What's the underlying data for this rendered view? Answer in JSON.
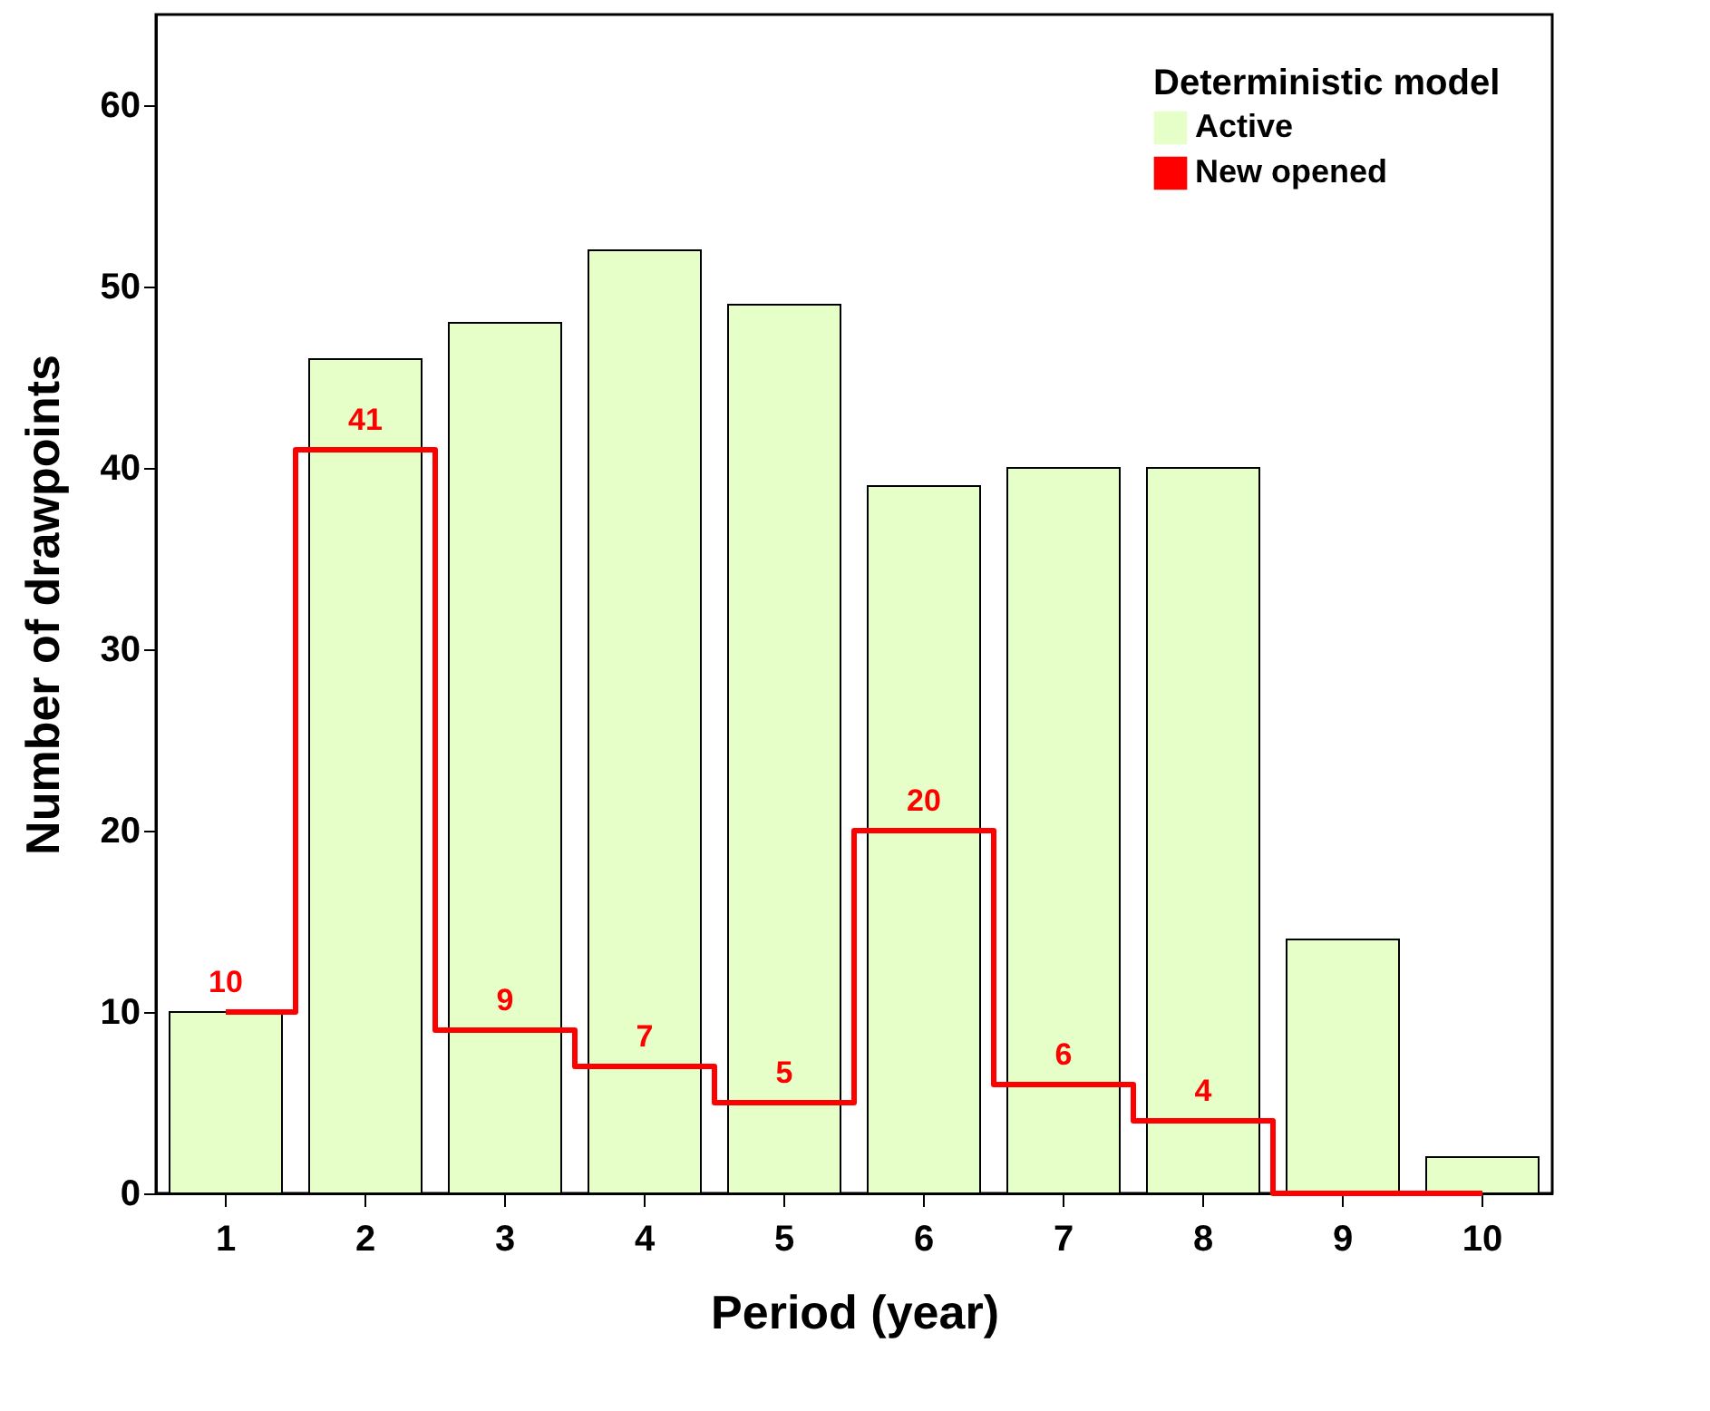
{
  "chart_data": {
    "type": "bar",
    "xlabel": "Period (year)",
    "ylabel": "Number  of drawpoints",
    "legend_title": "Deterministic model",
    "legend": "top right",
    "grid": false,
    "categories": [
      "1",
      "2",
      "3",
      "4",
      "5",
      "6",
      "7",
      "8",
      "9",
      "10"
    ],
    "ylim": [
      0,
      65
    ],
    "yticks": [
      0,
      10,
      20,
      30,
      40,
      50,
      60
    ],
    "series": [
      {
        "name": "Active",
        "color": "#e6ffc8",
        "values": [
          10,
          46,
          48,
          52,
          49,
          39,
          40,
          40,
          14,
          2
        ]
      },
      {
        "name": "New opened",
        "type": "step",
        "color": "#ff0000",
        "values": [
          10,
          41,
          9,
          7,
          5,
          20,
          6,
          4,
          0,
          0
        ],
        "value_labels": [
          "10",
          "41",
          "9",
          "7",
          "5",
          "20",
          "6",
          "4",
          null,
          null
        ]
      }
    ]
  }
}
